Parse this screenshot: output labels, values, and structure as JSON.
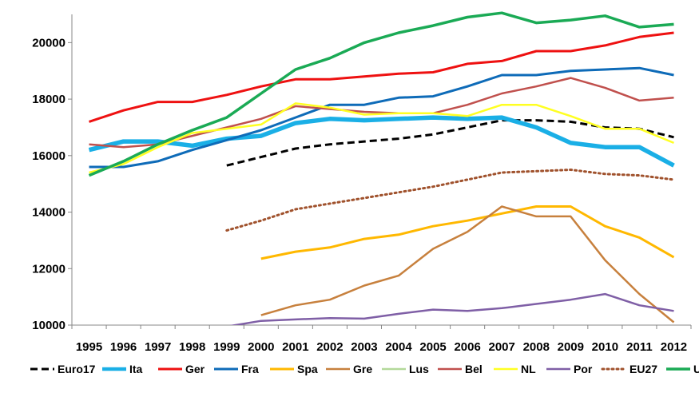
{
  "chart_data": {
    "type": "line",
    "title": "",
    "xlabel": "",
    "ylabel": "",
    "ylim": [
      10000,
      21000
    ],
    "yticks": [
      10000,
      12000,
      14000,
      16000,
      18000,
      20000
    ],
    "grid": false,
    "legend_placement": "bottom",
    "x": [
      1995,
      1996,
      1997,
      1998,
      1999,
      2000,
      2001,
      2002,
      2003,
      2004,
      2005,
      2006,
      2007,
      2008,
      2009,
      2010,
      2011,
      2012
    ],
    "x_labels": [
      "1995",
      "1996",
      "1997",
      "1998",
      "1999",
      "2000",
      "2001",
      "2002",
      "2003",
      "2004",
      "2005",
      "2006",
      "2007",
      "2008",
      "2009",
      "2010",
      "2011",
      "2012"
    ],
    "series": [
      {
        "name": "Euro17",
        "color": "#000000",
        "dash": "dashed",
        "width": 3,
        "values": [
          null,
          null,
          null,
          null,
          15650,
          15950,
          16250,
          16400,
          16500,
          16600,
          16750,
          17000,
          17250,
          17250,
          17200,
          17000,
          16950,
          16650
        ]
      },
      {
        "name": "Ita",
        "color": "#1AAFE6",
        "dash": "solid",
        "width": 5.5,
        "values": [
          16200,
          16500,
          16500,
          16350,
          16600,
          16700,
          17150,
          17300,
          17250,
          17300,
          17350,
          17300,
          17350,
          17000,
          16450,
          16300,
          16300,
          15650
        ]
      },
      {
        "name": "Ger",
        "color": "#EE1111",
        "dash": "solid",
        "width": 3,
        "values": [
          17200,
          17600,
          17900,
          17900,
          18150,
          18450,
          18700,
          18700,
          18800,
          18900,
          18950,
          19250,
          19350,
          19700,
          19700,
          19900,
          20200,
          20350
        ]
      },
      {
        "name": "Fra",
        "color": "#0E6BB8",
        "dash": "solid",
        "width": 3,
        "values": [
          15600,
          15600,
          15800,
          16200,
          16550,
          16900,
          17350,
          17800,
          17800,
          18050,
          18100,
          18450,
          18850,
          18850,
          19000,
          19050,
          19100,
          18850
        ]
      },
      {
        "name": "Spa",
        "color": "#FFB800",
        "dash": "solid",
        "width": 3,
        "values": [
          null,
          null,
          null,
          null,
          null,
          12350,
          12600,
          12750,
          13050,
          13200,
          13500,
          13700,
          13950,
          14200,
          14200,
          13500,
          13100,
          12400
        ]
      },
      {
        "name": "Gre",
        "color": "#C7803D",
        "dash": "solid",
        "width": 2.5,
        "values": [
          null,
          null,
          null,
          null,
          null,
          10350,
          10700,
          10900,
          11400,
          11750,
          12700,
          13300,
          14200,
          13850,
          13850,
          12300,
          11100,
          10100
        ]
      },
      {
        "name": "Lus",
        "color": "#B3D99A",
        "dash": "solid",
        "width": 2.5,
        "values": [
          null,
          null,
          null,
          null,
          null,
          null,
          null,
          null,
          null,
          null,
          null,
          null,
          null,
          null,
          null,
          null,
          null,
          null
        ]
      },
      {
        "name": "Bel",
        "color": "#C0504D",
        "dash": "solid",
        "width": 2.5,
        "values": [
          16400,
          16300,
          16400,
          16700,
          17000,
          17300,
          17750,
          17650,
          17550,
          17500,
          17500,
          17800,
          18200,
          18450,
          18750,
          18400,
          17950,
          18050
        ]
      },
      {
        "name": "NL",
        "color": "#FFFF22",
        "dash": "solid",
        "width": 2.5,
        "values": [
          15400,
          15700,
          16300,
          16800,
          16950,
          17100,
          17850,
          17700,
          17450,
          17500,
          17500,
          17400,
          17800,
          17800,
          17400,
          16950,
          16950,
          16450
        ]
      },
      {
        "name": "Por",
        "color": "#7F5FA6",
        "dash": "solid",
        "width": 2.5,
        "values": [
          null,
          null,
          null,
          null,
          9950,
          10150,
          10200,
          10250,
          10230,
          10400,
          10550,
          10500,
          10600,
          10750,
          10900,
          11100,
          10700,
          10500
        ]
      },
      {
        "name": "EU27",
        "color": "#A0522D",
        "dash": "dotted",
        "width": 3,
        "values": [
          null,
          null,
          null,
          null,
          13350,
          13700,
          14100,
          14300,
          14500,
          14700,
          14900,
          15150,
          15400,
          15450,
          15500,
          15350,
          15300,
          15150
        ]
      },
      {
        "name": "UK",
        "color": "#1AAA55",
        "dash": "solid",
        "width": 3.5,
        "values": [
          15300,
          15800,
          16400,
          16900,
          17350,
          18200,
          19050,
          19450,
          20000,
          20350,
          20600,
          20900,
          21050,
          20700,
          20800,
          20950,
          20550,
          20650
        ]
      }
    ]
  }
}
